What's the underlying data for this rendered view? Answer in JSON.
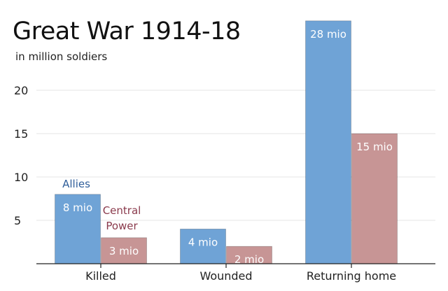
{
  "chart_data": {
    "type": "bar",
    "title": "Great War 1914-18",
    "subtitle": "in million soldiers",
    "categories": [
      "Killed",
      "Wounded",
      "Returning home"
    ],
    "series": [
      {
        "name": "Allies",
        "values": [
          8,
          4,
          28
        ],
        "labels": [
          "8 mio",
          "4 mio",
          "28 mio"
        ],
        "color": "#6fa3d6",
        "label_color": "#2f5e9a"
      },
      {
        "name": "Central Power",
        "values": [
          3,
          2,
          15
        ],
        "labels": [
          "3 mio",
          "2 mio",
          "15 mio"
        ],
        "color": "#c79595",
        "label_color": "#8a3a4c"
      }
    ],
    "legend_lines": [
      [
        "Allies"
      ],
      [
        "Central",
        "Power"
      ]
    ],
    "yticks": [
      5,
      10,
      15,
      20
    ],
    "ylim": [
      0,
      28
    ],
    "grid": true,
    "legend": "inline-above-killed-bars"
  }
}
